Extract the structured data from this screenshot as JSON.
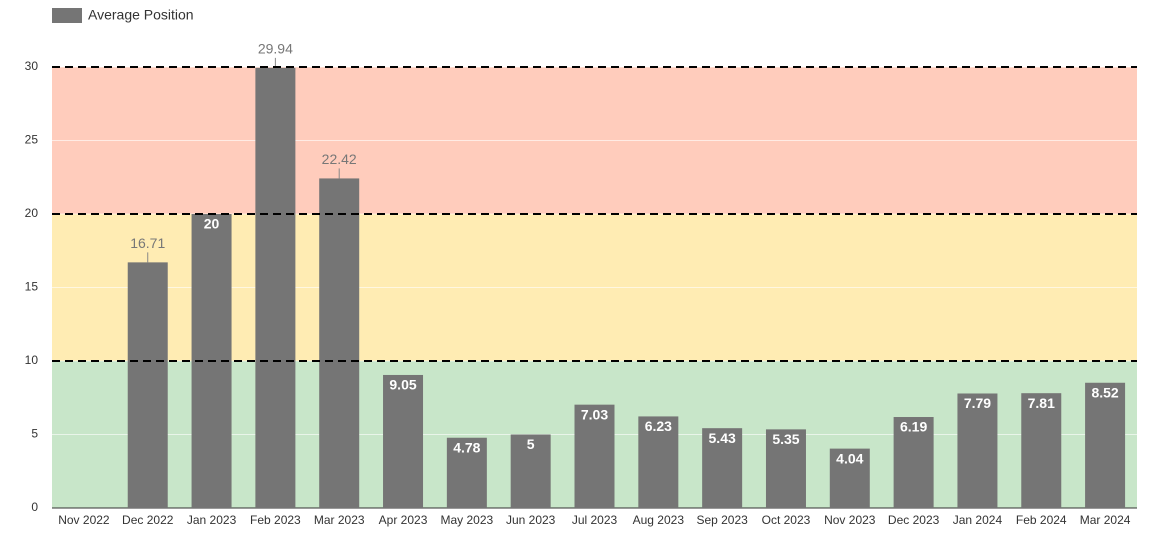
{
  "chart_data": {
    "type": "bar",
    "categories": [
      "Nov 2022",
      "Dec 2022",
      "Jan 2023",
      "Feb 2023",
      "Mar 2023",
      "Apr 2023",
      "May 2023",
      "Jun 2023",
      "Jul 2023",
      "Aug 2023",
      "Sep 2023",
      "Oct 2023",
      "Nov 2023",
      "Dec 2023",
      "Jan 2024",
      "Feb 2024",
      "Mar 2024"
    ],
    "series": [
      {
        "name": "Average Position",
        "color": "#757575",
        "values": [
          null,
          16.71,
          20,
          29.94,
          22.42,
          9.05,
          4.78,
          5,
          7.03,
          6.23,
          5.43,
          5.35,
          4.04,
          6.19,
          7.79,
          7.81,
          8.52
        ]
      }
    ],
    "ylim": [
      0,
      30
    ],
    "yticks": [
      0,
      5,
      10,
      15,
      20,
      25,
      30
    ],
    "grid": true,
    "legend": "top-left",
    "bands": [
      {
        "from": 0,
        "to": 10,
        "color": "#c8e6c9"
      },
      {
        "from": 10,
        "to": 20,
        "color": "#ffecb3"
      },
      {
        "from": 20,
        "to": 30,
        "color": "#ffccbc"
      }
    ],
    "reference_lines": [
      10,
      20,
      30
    ]
  }
}
